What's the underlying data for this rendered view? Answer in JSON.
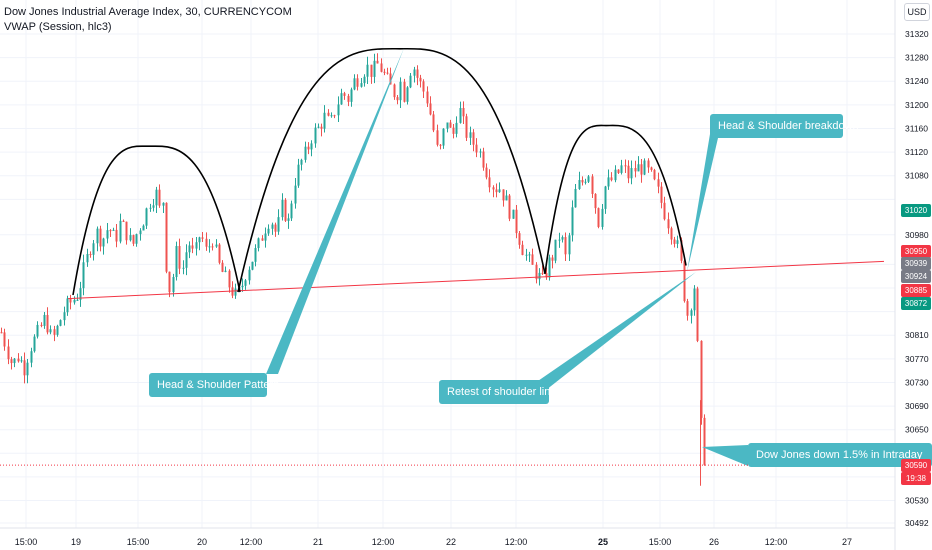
{
  "header": {
    "title": "Dow Jones Industrial Average Index, 30, CURRENCYCOM",
    "study": "VWAP (Session, hlc3)",
    "currency": "USD"
  },
  "callouts": {
    "pattern": "Head & Shoulder Pattern",
    "retest": "Retest of shoulder line",
    "breakdown": "Head & Shoulder breakdown",
    "down": "Dow Jones down 1.5% in Intraday"
  },
  "price_tags": [
    {
      "label": "31020",
      "color": "#089981"
    },
    {
      "label": "30950",
      "color": "#f23645"
    },
    {
      "label": "30939",
      "color": "#787b86"
    },
    {
      "label": "30924",
      "color": "#787b86"
    },
    {
      "label": "30885",
      "color": "#f23645"
    },
    {
      "label": "30872",
      "color": "#089981"
    },
    {
      "label": "30590",
      "color": "#f23645"
    },
    {
      "label": "19:38",
      "color": "#f23645"
    }
  ],
  "colors": {
    "up": "#26a69a",
    "down": "#ef5350",
    "callout": "#4bb8c4",
    "neckline": "#f23645",
    "arc": "#000000"
  },
  "chart_data": {
    "type": "candlestick",
    "title": "Dow Jones Industrial Average Index, 30, CURRENCYCOM",
    "y_ticks": [
      31320,
      31280,
      31240,
      31200,
      31160,
      31120,
      31080,
      31040,
      30980,
      30930,
      30890,
      30850,
      30810,
      30770,
      30730,
      30690,
      30650,
      30610,
      30570,
      30530,
      30492
    ],
    "y_tick_labels": [
      "31320",
      "31280",
      "31240",
      "31200",
      "31160",
      "31120",
      "31080",
      "",
      "30980",
      "",
      "",
      "",
      "30810",
      "30770",
      "30730",
      "30690",
      "30650",
      "30610",
      "",
      "30530",
      "30492"
    ],
    "x_tick_labels": [
      "15:00",
      "19",
      "15:00",
      "20",
      "12:00",
      "21",
      "12:00",
      "22",
      "12:00",
      "25",
      "15:00",
      "26",
      "12:00",
      "27"
    ],
    "x_tick_bold": [
      false,
      false,
      false,
      false,
      false,
      false,
      false,
      false,
      false,
      true,
      false,
      false,
      false,
      false
    ],
    "ylim": [
      30475,
      31350
    ],
    "last_price": 30590,
    "grid": true,
    "path_close": [
      [
        0,
        30820
      ],
      [
        6,
        30790
      ],
      [
        12,
        30760
      ],
      [
        18,
        30775
      ],
      [
        24,
        30755
      ],
      [
        30,
        30790
      ],
      [
        38,
        30815
      ],
      [
        45,
        30840
      ],
      [
        52,
        30800
      ],
      [
        58,
        30825
      ],
      [
        63,
        30850
      ],
      [
        70,
        30865
      ],
      [
        74,
        30872
      ],
      [
        78,
        30880
      ],
      [
        82,
        30910
      ],
      [
        86,
        30935
      ],
      [
        90,
        30960
      ],
      [
        96,
        30985
      ],
      [
        102,
        30970
      ],
      [
        108,
        30995
      ],
      [
        115,
        30970
      ],
      [
        120,
        31000
      ],
      [
        126,
        30985
      ],
      [
        132,
        30960
      ],
      [
        138,
        30990
      ],
      [
        144,
        31010
      ],
      [
        150,
        31040
      ],
      [
        156,
        31050
      ],
      [
        161,
        31010
      ],
      [
        164,
        31060
      ],
      [
        166,
        30930
      ],
      [
        170,
        30880
      ],
      [
        176,
        30950
      ],
      [
        182,
        30920
      ],
      [
        188,
        30970
      ],
      [
        194,
        30940
      ],
      [
        200,
        30985
      ],
      [
        206,
        30950
      ],
      [
        212,
        30975
      ],
      [
        218,
        30930
      ],
      [
        224,
        30910
      ],
      [
        230,
        30890
      ],
      [
        236,
        30875
      ],
      [
        240,
        30885
      ],
      [
        246,
        30920
      ],
      [
        252,
        30940
      ],
      [
        258,
        30960
      ],
      [
        264,
        30990
      ],
      [
        270,
        31010
      ],
      [
        276,
        30980
      ],
      [
        282,
        31030
      ],
      [
        288,
        31000
      ],
      [
        294,
        31070
      ],
      [
        300,
        31100
      ],
      [
        306,
        31120
      ],
      [
        312,
        31150
      ],
      [
        318,
        31160
      ],
      [
        324,
        31180
      ],
      [
        330,
        31165
      ],
      [
        336,
        31200
      ],
      [
        342,
        31220
      ],
      [
        348,
        31210
      ],
      [
        354,
        31240
      ],
      [
        360,
        31250
      ],
      [
        366,
        31265
      ],
      [
        372,
        31255
      ],
      [
        378,
        31270
      ],
      [
        384,
        31250
      ],
      [
        390,
        31230
      ],
      [
        396,
        31215
      ],
      [
        400,
        31240
      ],
      [
        404,
        31215
      ],
      [
        408,
        31250
      ],
      [
        412,
        31270
      ],
      [
        416,
        31250
      ],
      [
        420,
        31235
      ],
      [
        426,
        31215
      ],
      [
        432,
        31170
      ],
      [
        438,
        31110
      ],
      [
        442,
        31140
      ],
      [
        446,
        31180
      ],
      [
        452,
        31140
      ],
      [
        458,
        31200
      ],
      [
        464,
        31160
      ],
      [
        470,
        31140
      ],
      [
        476,
        31130
      ],
      [
        482,
        31110
      ],
      [
        488,
        31080
      ],
      [
        494,
        31060
      ],
      [
        500,
        31060
      ],
      [
        506,
        31035
      ],
      [
        512,
        31010
      ],
      [
        518,
        30980
      ],
      [
        524,
        30950
      ],
      [
        530,
        30930
      ],
      [
        536,
        30915
      ],
      [
        542,
        30900
      ],
      [
        548,
        30930
      ],
      [
        554,
        30950
      ],
      [
        560,
        30985
      ],
      [
        566,
        30935
      ],
      [
        570,
        31000
      ],
      [
        576,
        31060
      ],
      [
        582,
        31070
      ],
      [
        588,
        31090
      ],
      [
        594,
        31040
      ],
      [
        598,
        31000
      ],
      [
        604,
        31060
      ],
      [
        610,
        31070
      ],
      [
        616,
        31080
      ],
      [
        622,
        31095
      ],
      [
        628,
        31080
      ],
      [
        634,
        31090
      ],
      [
        640,
        31095
      ],
      [
        646,
        31090
      ],
      [
        652,
        31075
      ],
      [
        658,
        31050
      ],
      [
        664,
        31020
      ],
      [
        670,
        30990
      ],
      [
        676,
        30970
      ],
      [
        680,
        30940
      ],
      [
        684,
        30880
      ],
      [
        688,
        30840
      ],
      [
        692,
        30880
      ],
      [
        695,
        30900
      ],
      [
        698,
        30770
      ],
      [
        700,
        30700
      ],
      [
        702,
        30600
      ],
      [
        704,
        30590
      ]
    ],
    "annotations": {
      "neckline": {
        "from": [
          68,
          30872
        ],
        "to": [
          884,
          30935
        ]
      },
      "arcs": [
        {
          "from": [
            73,
            30878
          ],
          "peak": [
            148,
            31130
          ],
          "to": [
            240,
            30883
          ]
        },
        {
          "from": [
            238,
            30883
          ],
          "peak": [
            400,
            31295
          ],
          "to": [
            545,
            30914
          ]
        },
        {
          "from": [
            545,
            30914
          ],
          "peak": [
            606,
            31165
          ],
          "to": [
            686,
            30928
          ]
        }
      ]
    }
  }
}
